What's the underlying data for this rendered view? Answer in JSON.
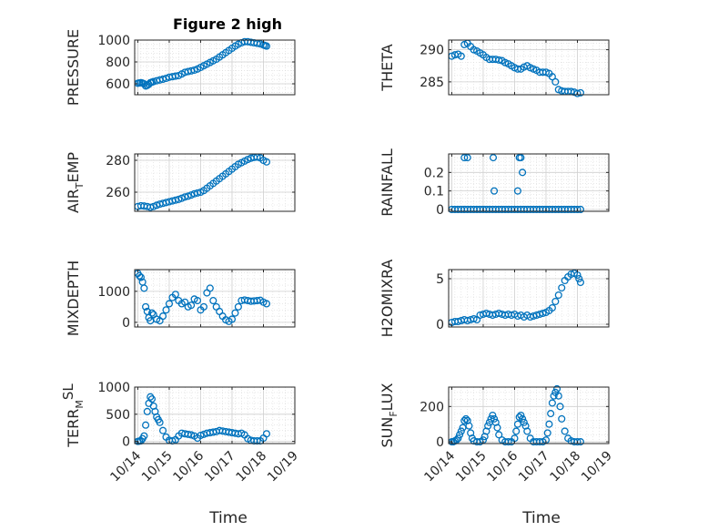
{
  "title": "Figure 2 high",
  "x_tick_labels": [
    "10/14",
    "10/15",
    "10/16",
    "10/17",
    "10/18",
    "10/19"
  ],
  "x_label": "Time",
  "marker_color": "#0072BD",
  "chart_data": [
    {
      "type": "scatter",
      "id": "pressure",
      "ylabel": {
        "main": "PRESSURE",
        "sub": "",
        "tail": ""
      },
      "ylim": [
        500,
        1000
      ],
      "yticks": [
        600,
        800,
        1000
      ],
      "x": [
        0,
        0.05,
        0.1,
        0.15,
        0.2,
        0.25,
        0.3,
        0.35,
        0.4,
        0.45,
        0.5,
        0.6,
        0.7,
        0.8,
        0.9,
        1.0,
        1.1,
        1.2,
        1.3,
        1.4,
        1.5,
        1.6,
        1.7,
        1.8,
        1.9,
        2.0,
        2.1,
        2.2,
        2.3,
        2.4,
        2.5,
        2.6,
        2.7,
        2.8,
        2.9,
        3.0,
        3.1,
        3.2,
        3.3,
        3.4,
        3.5,
        3.6,
        3.7,
        3.8,
        3.9,
        4.0,
        4.05,
        4.1
      ],
      "y": [
        605,
        608,
        610,
        606,
        600,
        580,
        585,
        595,
        610,
        615,
        620,
        628,
        635,
        642,
        650,
        660,
        665,
        670,
        675,
        690,
        705,
        712,
        718,
        725,
        735,
        750,
        765,
        780,
        795,
        810,
        825,
        845,
        865,
        885,
        905,
        925,
        945,
        962,
        975,
        985,
        985,
        980,
        975,
        970,
        965,
        955,
        950,
        945
      ]
    },
    {
      "type": "scatter",
      "id": "theta",
      "ylabel": {
        "main": "THETA",
        "sub": "",
        "tail": ""
      },
      "ylim": [
        283,
        291.5
      ],
      "yticks": [
        285,
        290
      ],
      "x": [
        0,
        0.1,
        0.2,
        0.3,
        0.4,
        0.5,
        0.6,
        0.7,
        0.8,
        0.9,
        1.0,
        1.1,
        1.2,
        1.3,
        1.4,
        1.5,
        1.6,
        1.7,
        1.8,
        1.9,
        2.0,
        2.1,
        2.2,
        2.3,
        2.4,
        2.5,
        2.6,
        2.7,
        2.8,
        2.9,
        3.0,
        3.1,
        3.2,
        3.3,
        3.4,
        3.5,
        3.6,
        3.7,
        3.8,
        3.9,
        4.0,
        4.1
      ],
      "y": [
        289,
        289.2,
        289.3,
        289,
        290.8,
        291,
        290.5,
        290,
        289.8,
        289.5,
        289.2,
        288.8,
        288.5,
        288.5,
        288.5,
        288.4,
        288.3,
        288,
        287.8,
        287.5,
        287.2,
        287,
        287,
        287.3,
        287.5,
        287.2,
        287,
        286.8,
        286.5,
        286.5,
        286.5,
        286.3,
        285.8,
        285,
        283.8,
        283.6,
        283.5,
        283.5,
        283.5,
        283.4,
        283.2,
        283.3
      ]
    },
    {
      "type": "scatter",
      "id": "air_temp",
      "ylabel": {
        "main": "AIR",
        "sub": "T",
        "tail": "EMP"
      },
      "ylim": [
        248,
        284
      ],
      "yticks": [
        260,
        280
      ],
      "x": [
        0,
        0.1,
        0.2,
        0.3,
        0.4,
        0.5,
        0.6,
        0.7,
        0.8,
        0.9,
        1.0,
        1.1,
        1.2,
        1.3,
        1.4,
        1.5,
        1.6,
        1.7,
        1.8,
        1.9,
        2.0,
        2.1,
        2.2,
        2.3,
        2.4,
        2.5,
        2.6,
        2.7,
        2.8,
        2.9,
        3.0,
        3.1,
        3.2,
        3.3,
        3.4,
        3.5,
        3.6,
        3.7,
        3.8,
        3.9,
        4.0,
        4.1
      ],
      "y": [
        251,
        251.5,
        251.3,
        251,
        250.5,
        251,
        251.8,
        252.5,
        253,
        253.5,
        254,
        254.5,
        255,
        255.5,
        256.2,
        257,
        257.5,
        258.2,
        259,
        259.5,
        260,
        261,
        262.5,
        264,
        265.5,
        267,
        268.5,
        270,
        271.5,
        273,
        274.5,
        276,
        277.5,
        278.5,
        279.5,
        280.5,
        281.3,
        281.8,
        282,
        281.5,
        280,
        279
      ]
    },
    {
      "type": "scatter",
      "id": "rainfall",
      "ylabel": {
        "main": "RAINFALL",
        "sub": "",
        "tail": ""
      },
      "ylim": [
        -0.01,
        0.3
      ],
      "yticks": [
        0,
        0.1,
        0.2
      ],
      "x": [
        0,
        0.1,
        0.2,
        0.3,
        0.4,
        0.5,
        0.6,
        0.7,
        0.8,
        0.9,
        1.0,
        1.1,
        1.2,
        1.3,
        1.4,
        1.5,
        1.6,
        1.7,
        1.8,
        1.9,
        2.0,
        2.1,
        2.2,
        2.3,
        2.4,
        2.5,
        2.6,
        2.7,
        2.8,
        2.9,
        3.0,
        3.1,
        3.2,
        3.3,
        3.4,
        3.5,
        3.6,
        3.7,
        3.8,
        3.9,
        4.0,
        4.1,
        0.4,
        0.5,
        1.32,
        1.35,
        2.1,
        2.15,
        2.2,
        2.25
      ],
      "y": [
        0,
        0,
        0,
        0,
        0,
        0,
        0,
        0,
        0,
        0,
        0,
        0,
        0,
        0,
        0,
        0,
        0,
        0,
        0,
        0,
        0,
        0,
        0,
        0,
        0,
        0,
        0,
        0,
        0,
        0,
        0,
        0,
        0,
        0,
        0,
        0,
        0,
        0,
        0,
        0,
        0,
        0,
        0.28,
        0.28,
        0.28,
        0.1,
        0.1,
        0.28,
        0.28,
        0.2
      ]
    },
    {
      "type": "scatter",
      "id": "mixdepth",
      "ylabel": {
        "main": "MIXDEPTH",
        "sub": "",
        "tail": ""
      },
      "ylim": [
        -150,
        1700
      ],
      "yticks": [
        0,
        1000
      ],
      "x": [
        0,
        0.05,
        0.1,
        0.15,
        0.2,
        0.25,
        0.3,
        0.35,
        0.4,
        0.45,
        0.5,
        0.6,
        0.7,
        0.8,
        0.9,
        1.0,
        1.1,
        1.2,
        1.3,
        1.4,
        1.5,
        1.6,
        1.7,
        1.8,
        1.9,
        2.0,
        2.1,
        2.2,
        2.3,
        2.4,
        2.5,
        2.6,
        2.7,
        2.8,
        2.9,
        3.0,
        3.1,
        3.2,
        3.3,
        3.4,
        3.5,
        3.6,
        3.7,
        3.8,
        3.9,
        4.0,
        4.1
      ],
      "y": [
        1580,
        1500,
        1450,
        1300,
        1100,
        500,
        350,
        150,
        50,
        300,
        250,
        100,
        50,
        200,
        400,
        600,
        800,
        900,
        700,
        600,
        650,
        500,
        550,
        750,
        700,
        400,
        500,
        950,
        1100,
        700,
        500,
        350,
        200,
        80,
        30,
        100,
        300,
        500,
        700,
        720,
        700,
        680,
        690,
        700,
        710,
        650,
        600
      ]
    },
    {
      "type": "scatter",
      "id": "h2omixra",
      "ylabel": {
        "main": "H2OMIXRA",
        "sub": "",
        "tail": ""
      },
      "ylim": [
        -0.3,
        6
      ],
      "yticks": [
        0,
        5
      ],
      "x": [
        0,
        0.1,
        0.2,
        0.3,
        0.4,
        0.5,
        0.6,
        0.7,
        0.8,
        0.9,
        1.0,
        1.1,
        1.2,
        1.3,
        1.4,
        1.5,
        1.6,
        1.7,
        1.8,
        1.9,
        2.0,
        2.1,
        2.2,
        2.3,
        2.4,
        2.5,
        2.6,
        2.7,
        2.8,
        2.9,
        3.0,
        3.1,
        3.2,
        3.3,
        3.4,
        3.5,
        3.6,
        3.7,
        3.8,
        3.9,
        4.0,
        4.05,
        4.1
      ],
      "y": [
        0.2,
        0.3,
        0.3,
        0.4,
        0.5,
        0.4,
        0.5,
        0.6,
        0.5,
        1.0,
        1.1,
        1.2,
        1.1,
        1.0,
        1.1,
        1.2,
        1.1,
        1.0,
        1.1,
        1.0,
        1.1,
        0.9,
        1.0,
        0.8,
        1.0,
        0.8,
        0.9,
        1.0,
        1.1,
        1.2,
        1.3,
        1.5,
        1.8,
        2.5,
        3.2,
        4.0,
        4.8,
        5.2,
        5.5,
        5.6,
        5.4,
        5.0,
        4.6
      ]
    },
    {
      "type": "scatter",
      "id": "terr_msl",
      "ylabel": {
        "main": "TERR",
        "sub": "M",
        "tail": "SL",
        "tail_superscript": true
      },
      "ylim": [
        -40,
        1000
      ],
      "yticks": [
        0,
        500,
        1000
      ],
      "x": [
        0,
        0.05,
        0.1,
        0.15,
        0.2,
        0.25,
        0.3,
        0.35,
        0.4,
        0.45,
        0.5,
        0.55,
        0.6,
        0.65,
        0.7,
        0.8,
        0.9,
        1.0,
        1.1,
        1.2,
        1.3,
        1.4,
        1.5,
        1.6,
        1.7,
        1.8,
        1.9,
        2.0,
        2.1,
        2.2,
        2.3,
        2.4,
        2.5,
        2.6,
        2.7,
        2.8,
        2.9,
        3.0,
        3.1,
        3.2,
        3.3,
        3.4,
        3.5,
        3.6,
        3.7,
        3.8,
        3.9,
        4.0,
        4.1
      ],
      "y": [
        0,
        5,
        10,
        50,
        100,
        300,
        550,
        700,
        820,
        780,
        650,
        550,
        450,
        400,
        350,
        200,
        80,
        20,
        10,
        30,
        100,
        150,
        140,
        130,
        120,
        100,
        60,
        110,
        130,
        150,
        160,
        170,
        180,
        200,
        190,
        180,
        170,
        160,
        150,
        140,
        150,
        120,
        50,
        20,
        10,
        10,
        10,
        60,
        140
      ]
    },
    {
      "type": "scatter",
      "id": "sun_flux",
      "ylabel": {
        "main": "SUN",
        "sub": "F",
        "tail": "LUX"
      },
      "ylim": [
        -10,
        310
      ],
      "yticks": [
        0,
        200
      ],
      "x": [
        0,
        0.05,
        0.1,
        0.15,
        0.2,
        0.25,
        0.3,
        0.35,
        0.4,
        0.45,
        0.5,
        0.55,
        0.6,
        0.65,
        0.7,
        0.8,
        0.9,
        1.0,
        1.05,
        1.1,
        1.15,
        1.2,
        1.25,
        1.3,
        1.35,
        1.4,
        1.45,
        1.5,
        1.6,
        1.7,
        1.8,
        1.9,
        2.0,
        2.05,
        2.1,
        2.15,
        2.2,
        2.25,
        2.3,
        2.35,
        2.4,
        2.5,
        2.6,
        2.7,
        2.8,
        2.9,
        3.0,
        3.05,
        3.1,
        3.15,
        3.2,
        3.25,
        3.3,
        3.35,
        3.4,
        3.45,
        3.5,
        3.6,
        3.7,
        3.8,
        3.9,
        4.0,
        4.1
      ],
      "y": [
        0,
        0,
        5,
        10,
        20,
        40,
        60,
        80,
        120,
        130,
        120,
        90,
        50,
        20,
        5,
        0,
        0,
        10,
        30,
        60,
        90,
        110,
        130,
        150,
        130,
        110,
        80,
        40,
        10,
        0,
        0,
        0,
        20,
        60,
        100,
        140,
        150,
        130,
        110,
        90,
        60,
        20,
        0,
        0,
        0,
        0,
        10,
        50,
        100,
        160,
        220,
        260,
        280,
        300,
        260,
        200,
        130,
        60,
        20,
        5,
        0,
        0,
        0
      ]
    }
  ]
}
